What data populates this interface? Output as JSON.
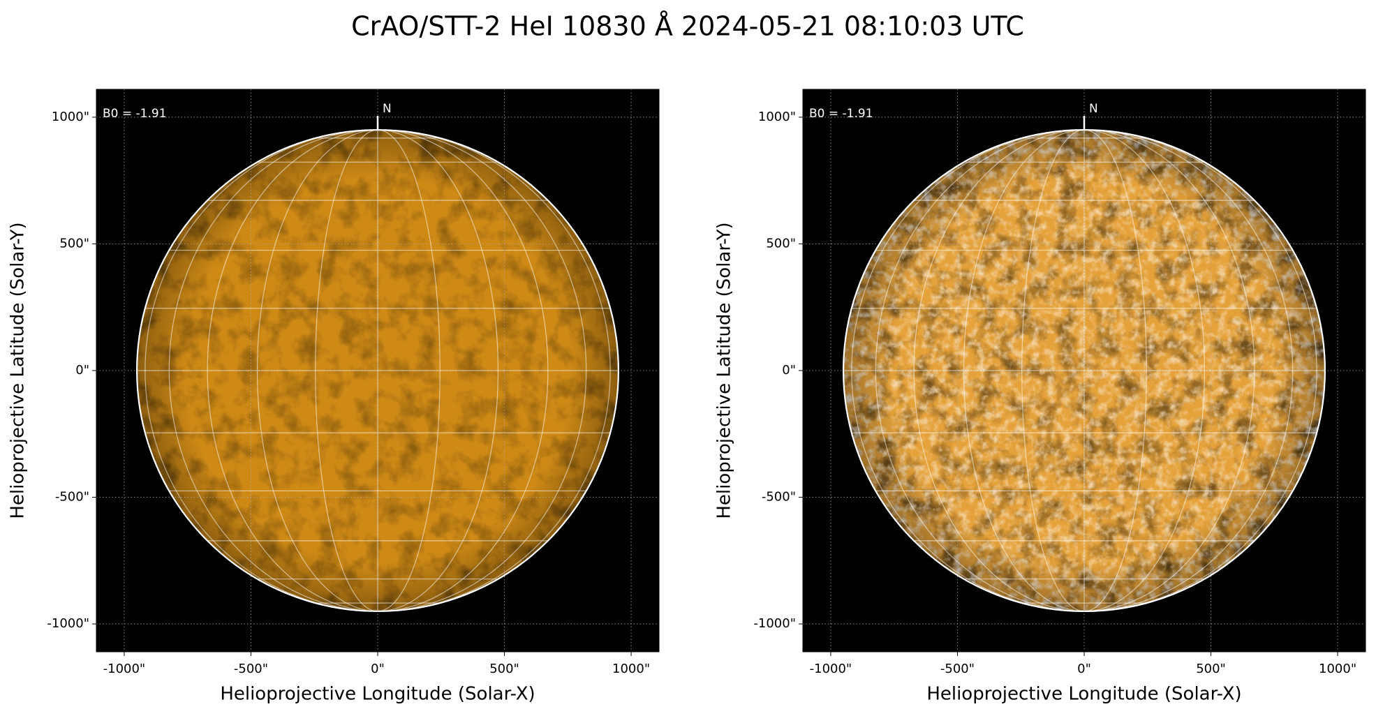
{
  "suptitle": "CrAO/STT-2 HeI 10830 Å 2024-05-21 08:10:03 UTC",
  "chart_data": [
    {
      "type": "image",
      "xlabel": "Helioprojective Longitude (Solar-X)",
      "ylabel": "Helioprojective Latitude (Solar-Y)",
      "xlim": [
        -1110,
        1110
      ],
      "ylim": [
        -1110,
        1110
      ],
      "xticks": [
        {
          "value": -1000,
          "label": "-1000\""
        },
        {
          "value": -500,
          "label": "-500\""
        },
        {
          "value": 0,
          "label": "0\""
        },
        {
          "value": 500,
          "label": "500\""
        },
        {
          "value": 1000,
          "label": "1000\""
        }
      ],
      "yticks": [
        {
          "value": -1000,
          "label": "-1000\""
        },
        {
          "value": -500,
          "label": "-500\""
        },
        {
          "value": 0,
          "label": "0\""
        },
        {
          "value": 500,
          "label": "500\""
        },
        {
          "value": 1000,
          "label": "1000\""
        }
      ],
      "annotations": [
        "B0 = -1.91",
        "N"
      ],
      "solar_radius": 950,
      "color": "#cf8a16",
      "grid": true
    },
    {
      "type": "image",
      "xlabel": "Helioprojective Longitude (Solar-X)",
      "ylabel": "Helioprojective Latitude (Solar-Y)",
      "xlim": [
        -1110,
        1110
      ],
      "ylim": [
        -1110,
        1110
      ],
      "xticks": [
        {
          "value": -1000,
          "label": "-1000\""
        },
        {
          "value": -500,
          "label": "-500\""
        },
        {
          "value": 0,
          "label": "0\""
        },
        {
          "value": 500,
          "label": "500\""
        },
        {
          "value": 1000,
          "label": "1000\""
        }
      ],
      "yticks": [
        {
          "value": -1000,
          "label": "-1000\""
        },
        {
          "value": -500,
          "label": "-500\""
        },
        {
          "value": 0,
          "label": "0\""
        },
        {
          "value": 500,
          "label": "500\""
        },
        {
          "value": 1000,
          "label": "1000\""
        }
      ],
      "annotations": [
        "B0 = -1.91",
        "N"
      ],
      "solar_radius": 950,
      "color": "#e6a23a",
      "grid": true
    }
  ]
}
